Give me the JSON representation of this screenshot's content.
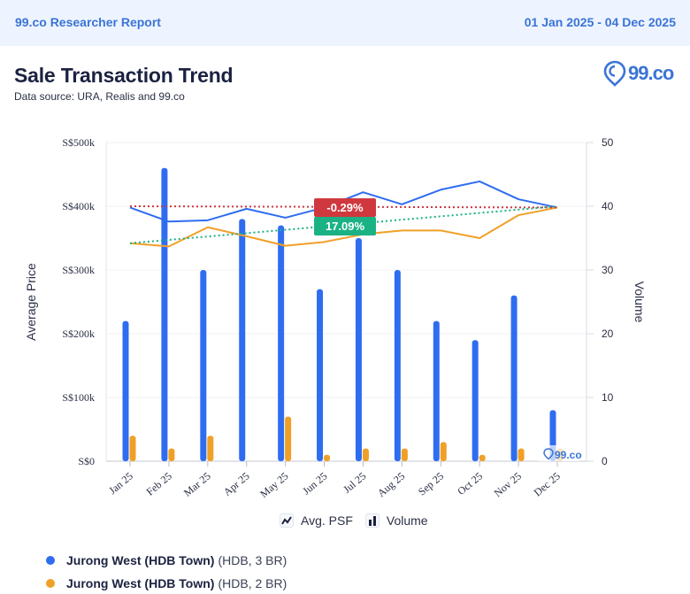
{
  "header": {
    "report_label": "99.co Researcher Report",
    "date_range": "01 Jan 2025 - 04 Dec 2025"
  },
  "page": {
    "title": "Sale Transaction Trend",
    "subtitle": "Data source: URA, Realis and 99.co",
    "brand": "99.co",
    "watermark": "99.co"
  },
  "legend_toggles": [
    {
      "label": "Avg. PSF",
      "icon": "line-chart-icon"
    },
    {
      "label": "Volume",
      "icon": "bar-chart-icon"
    }
  ],
  "series_legend": [
    {
      "name": "Jurong West (HDB Town)",
      "meta": "(HDB, 3 BR)",
      "color": "#2f6df0"
    },
    {
      "name": "Jurong West (HDB Town)",
      "meta": "(HDB, 2 BR)",
      "color": "#f0a027"
    }
  ],
  "chart_data": {
    "type": "bar+line",
    "title": "Sale Transaction Trend",
    "categories": [
      "Jan 25",
      "Feb 25",
      "Mar 25",
      "Apr 25",
      "May 25",
      "Jun 25",
      "Jul 25",
      "Aug 25",
      "Sep 25",
      "Oct 25",
      "Nov 25",
      "Dec 25"
    ],
    "ylabel_left": "Average Price",
    "ylabel_right": "Volume",
    "ylim_left": [
      0,
      500000
    ],
    "ylim_right": [
      0,
      50
    ],
    "yticks_left": [
      "S$0",
      "S$100k",
      "S$200k",
      "S$300k",
      "S$400k",
      "S$500k"
    ],
    "yticks_right": [
      "0",
      "10",
      "20",
      "30",
      "40",
      "50"
    ],
    "grid": true,
    "series": [
      {
        "name": "Jurong West (HDB Town) (HDB, 3 BR)",
        "color": "#2f6df0",
        "price": [
          398000,
          376000,
          378000,
          396000,
          382000,
          398000,
          422000,
          403000,
          426000,
          439000,
          411000,
          398000
        ],
        "volume": [
          22,
          46,
          30,
          38,
          37,
          27,
          35,
          30,
          22,
          19,
          26,
          8
        ]
      },
      {
        "name": "Jurong West (HDB Town) (HDB, 2 BR)",
        "color": "#f0a027",
        "price": [
          342000,
          337000,
          367000,
          353000,
          338000,
          344000,
          356000,
          362000,
          362000,
          350000,
          386000,
          398000
        ],
        "volume": [
          4,
          2,
          4,
          0,
          7,
          1,
          2,
          2,
          3,
          1,
          2,
          2
        ]
      }
    ],
    "trendlines": [
      {
        "label": "-0.29%",
        "color": "#d0383f",
        "from": 400000,
        "to": 398000
      },
      {
        "label": "17.09%",
        "color": "#1ab285",
        "from": 342000,
        "to": 400000
      }
    ]
  }
}
